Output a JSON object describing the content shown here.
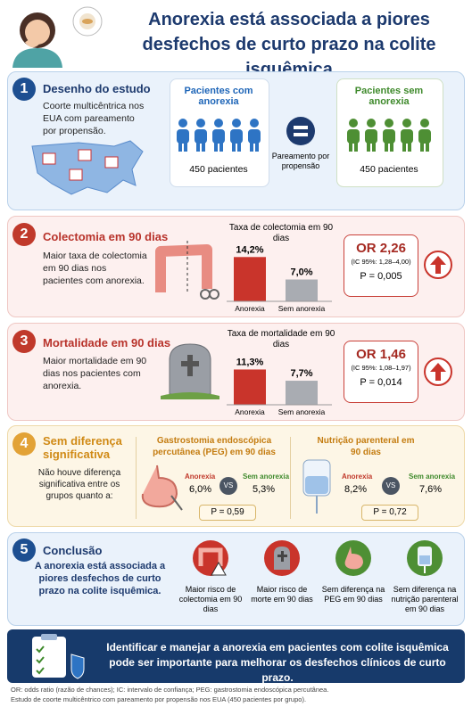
{
  "header": {
    "title": "Anorexia está associada a piores desfechos de curto prazo na colite isquêmica"
  },
  "design": {
    "number": "1",
    "heading": "Desenho do estudo",
    "text": "Coorte multicêntrica nos EUA com pareamento por propensão.",
    "group_a": {
      "label": "Pacientes com anorexia",
      "count": "450 pacientes"
    },
    "matching": "Pareamento por propensão",
    "group_b": {
      "label": "Pacientes sem anorexia",
      "count": "450 pacientes"
    }
  },
  "colectomy": {
    "number": "2",
    "heading": "Colectomia em 90 dias",
    "text": "Maior taxa de colectomia em 90 dias nos pacientes com anorexia.",
    "chart": {
      "title": "Taxa de colectomia em 90 dias",
      "categories": [
        "Anorexia",
        "Sem anorexia"
      ],
      "values": [
        14.2,
        7.0
      ],
      "value_labels": [
        "14,2%",
        "7,0%"
      ]
    },
    "or": "OR 2,26",
    "ci": "(IC 95%: 1,28–4,00)",
    "p": "P = 0,005"
  },
  "mortality": {
    "number": "3",
    "heading": "Mortalidade em 90 dias",
    "text": "Maior mortalidade em 90 dias nos pacientes com anorexia.",
    "chart": {
      "title": "Taxa de mortalidade em 90 dias",
      "categories": [
        "Anorexia",
        "Sem anorexia"
      ],
      "values": [
        11.3,
        7.7
      ],
      "value_labels": [
        "11,3%",
        "7,7%"
      ]
    },
    "or": "OR 1,46",
    "ci": "(IC 95%: 1,08–1,97)",
    "p": "P = 0,014"
  },
  "no_difference": {
    "number": "4",
    "heading": "Sem diferença significativa",
    "text": "Não houve diferença significativa entre os grupos quanto a:",
    "peg": {
      "title": "Gastrostomia endoscópica percutânea (PEG) em 90 dias",
      "group_a": "Anorexia",
      "value_a": "6,0%",
      "vs": "VS",
      "group_b": "Sem anorexia",
      "value_b": "5,3%",
      "p": "P = 0,59"
    },
    "parenteral": {
      "title": "Nutrição parenteral em 90 dias",
      "group_a": "Anorexia",
      "value_a": "8,2%",
      "vs": "VS",
      "group_b": "Sem anorexia",
      "value_b": "7,6%",
      "p": "P = 0,72"
    }
  },
  "conclusion": {
    "number": "5",
    "heading": "Conclusão",
    "text": "A anorexia está associada a piores desfechos de curto prazo na colite isquêmica.",
    "items": [
      "Maior risco de colectomia em 90 dias",
      "Maior risco de morte em 90 dias",
      "Sem diferença na PEG em 90 dias",
      "Sem diferença na nutrição parenteral em 90 dias"
    ]
  },
  "banner": "Identificar e manejar a anorexia em pacientes com colite isquêmica pode ser importante para melhorar os desfechos clínicos de curto prazo.",
  "footnotes": [
    "OR: odds ratio (razão de chances); IC: intervalo de confiança; PEG: gastrostomia endoscópica percutânea.",
    "Estudo de coorte multicêntrico com pareamento por propensão nos EUA (450 pacientes por grupo)."
  ]
}
